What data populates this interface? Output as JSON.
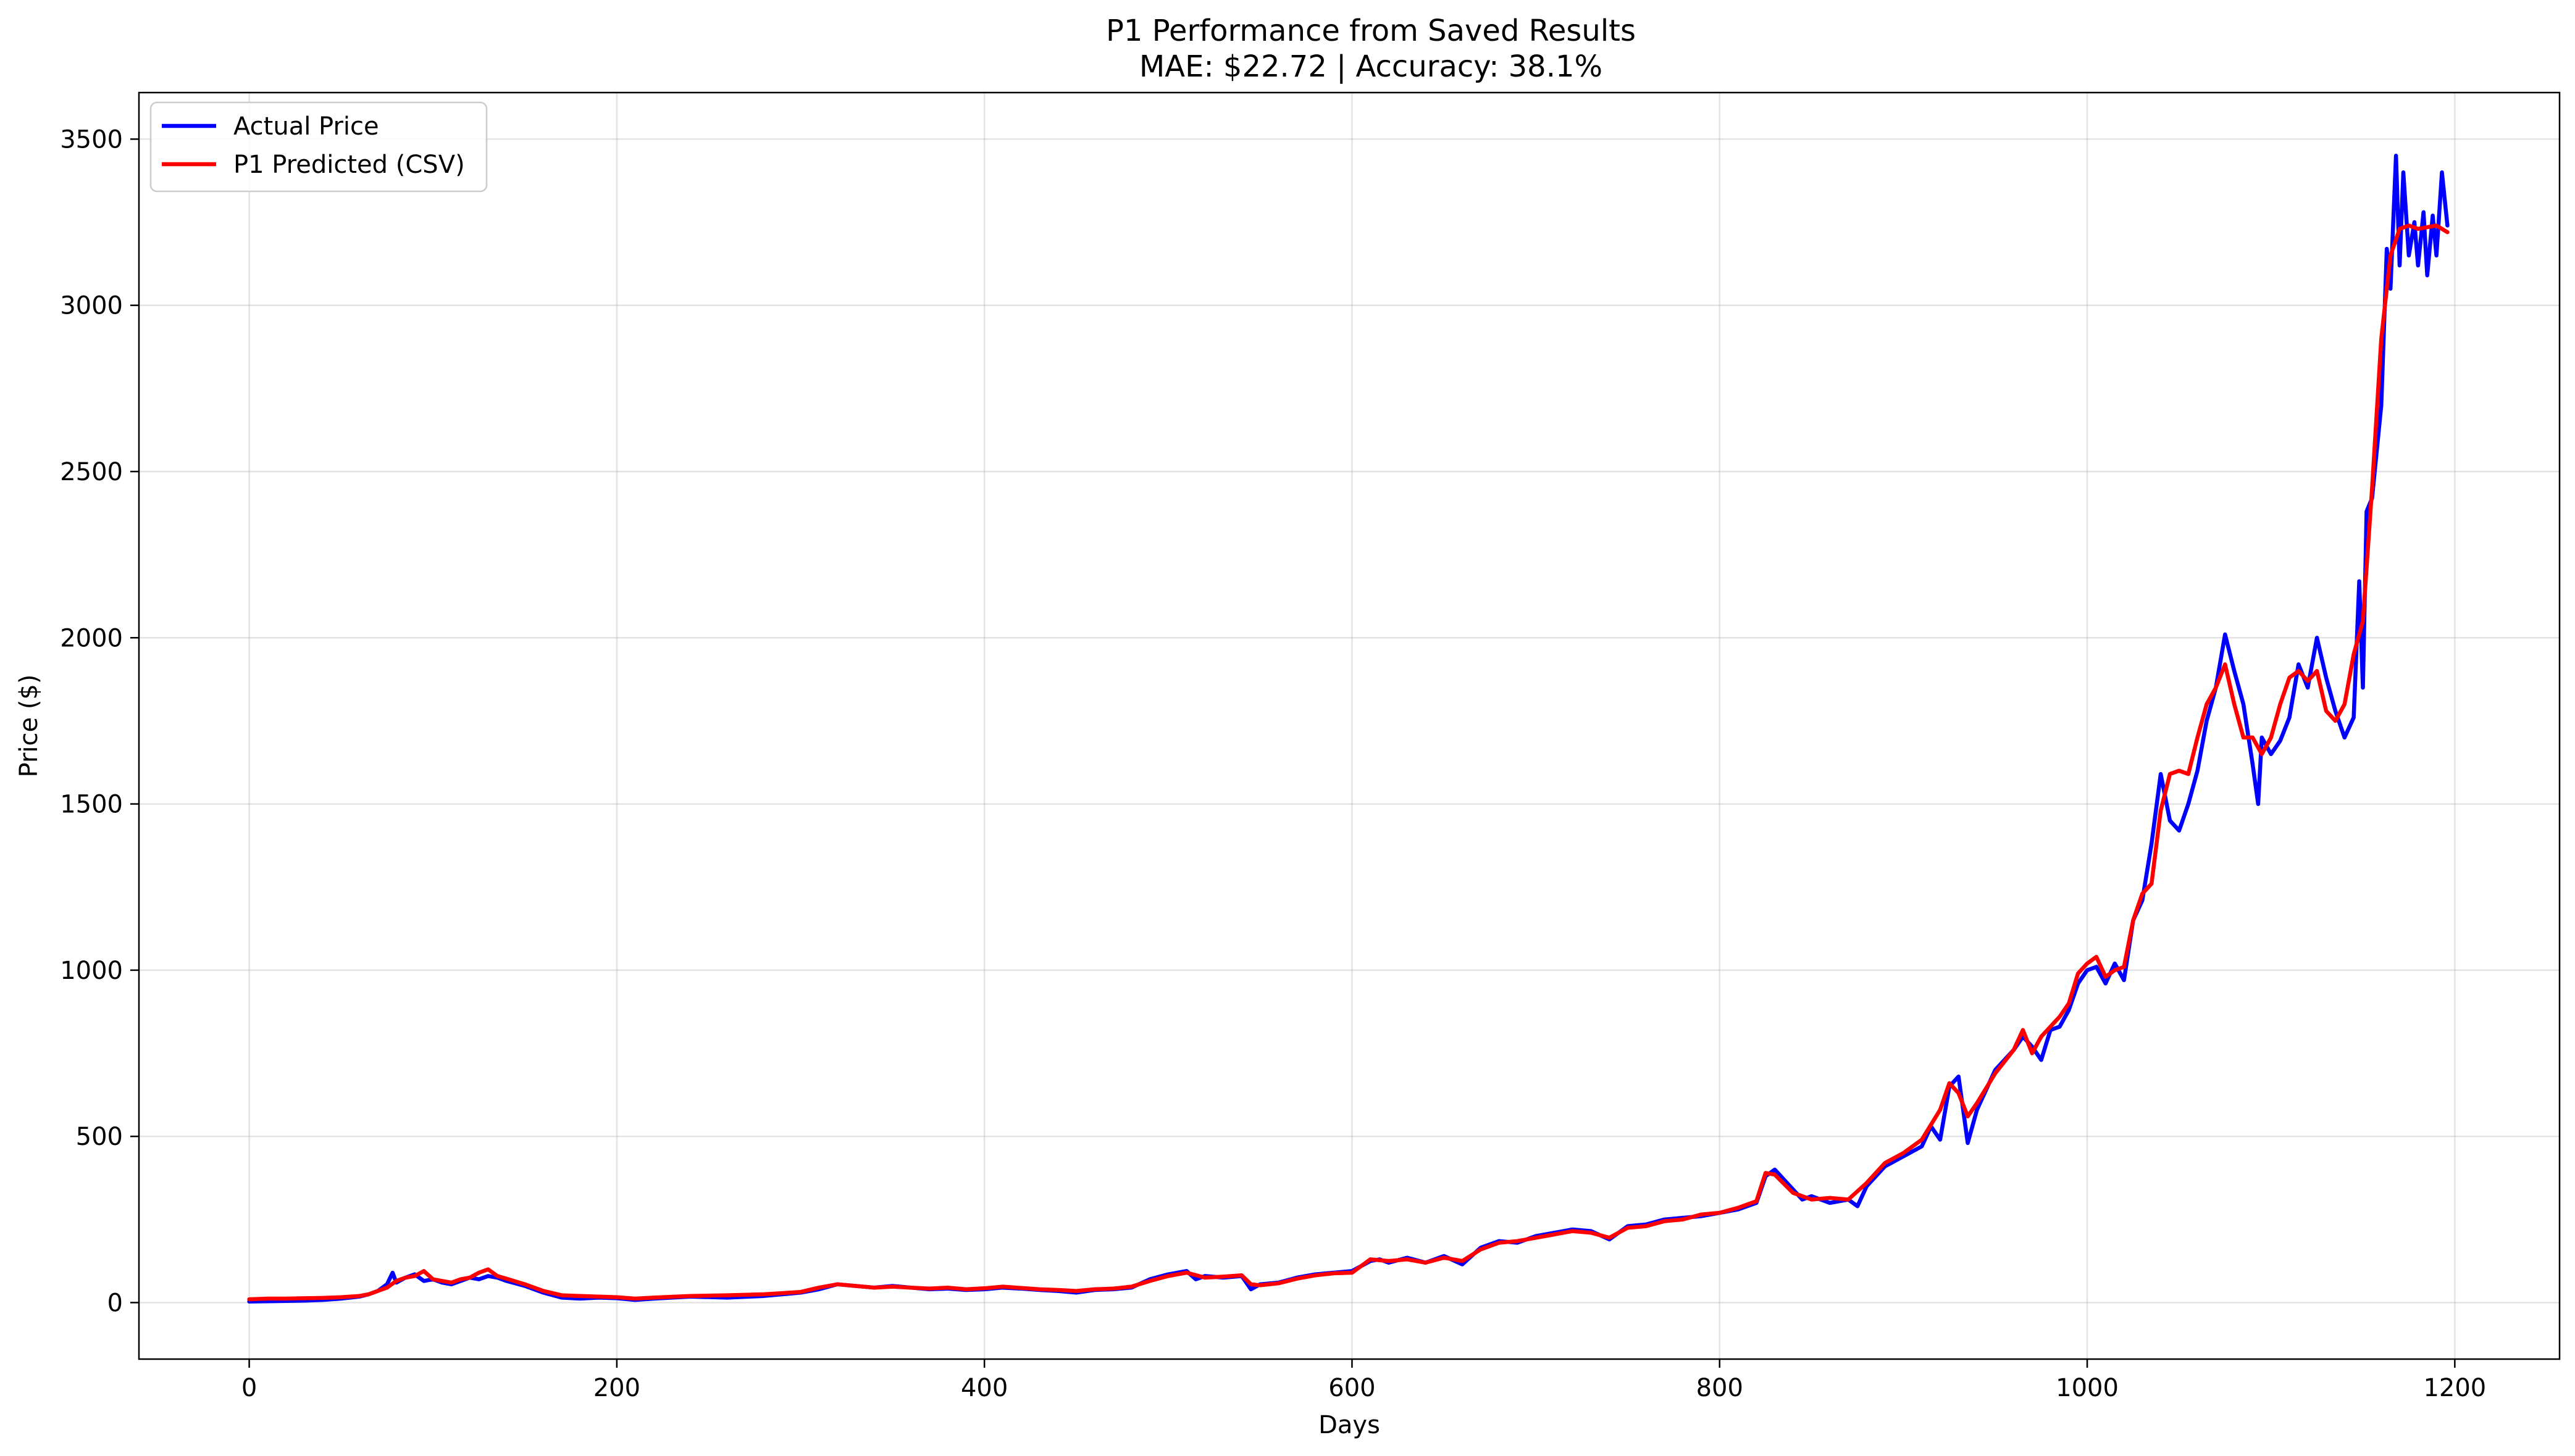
{
  "chart_data": {
    "type": "line",
    "title": "P1 Performance from Saved Results",
    "subtitle": "MAE: $22.72 | Accuracy: 38.1%",
    "xlabel": "Days",
    "ylabel": "Price ($)",
    "xlim": [
      -60,
      1257
    ],
    "ylim": [
      -170,
      3640
    ],
    "xticks": [
      0,
      200,
      400,
      600,
      800,
      1000,
      1200
    ],
    "yticks": [
      0,
      500,
      1000,
      1500,
      2000,
      2500,
      3000,
      3500
    ],
    "grid": true,
    "legend_position": "top-left",
    "series": [
      {
        "name": "Actual Price",
        "color": "#0000ff",
        "x": [
          0,
          10,
          20,
          30,
          40,
          50,
          60,
          65,
          70,
          75,
          78,
          80,
          85,
          90,
          95,
          100,
          105,
          110,
          115,
          120,
          125,
          130,
          135,
          140,
          150,
          160,
          170,
          180,
          190,
          200,
          210,
          220,
          240,
          260,
          280,
          300,
          310,
          320,
          330,
          340,
          350,
          360,
          370,
          380,
          390,
          400,
          410,
          420,
          430,
          440,
          450,
          460,
          470,
          480,
          490,
          500,
          510,
          515,
          520,
          530,
          540,
          545,
          550,
          560,
          570,
          580,
          590,
          600,
          610,
          615,
          620,
          630,
          640,
          650,
          660,
          670,
          680,
          690,
          700,
          710,
          720,
          730,
          740,
          750,
          760,
          770,
          780,
          790,
          800,
          810,
          820,
          825,
          830,
          840,
          845,
          850,
          860,
          870,
          875,
          880,
          890,
          900,
          910,
          915,
          920,
          925,
          930,
          935,
          940,
          950,
          960,
          965,
          970,
          975,
          980,
          985,
          990,
          995,
          1000,
          1005,
          1010,
          1015,
          1020,
          1025,
          1030,
          1035,
          1040,
          1045,
          1050,
          1055,
          1060,
          1065,
          1070,
          1075,
          1080,
          1085,
          1090,
          1093,
          1095,
          1100,
          1105,
          1110,
          1115,
          1120,
          1125,
          1130,
          1135,
          1140,
          1145,
          1148,
          1150,
          1152,
          1155,
          1160,
          1163,
          1165,
          1168,
          1170,
          1172,
          1175,
          1178,
          1180,
          1183,
          1185,
          1188,
          1190,
          1193,
          1196
        ],
        "values": [
          3,
          4,
          5,
          6,
          8,
          12,
          18,
          25,
          35,
          55,
          90,
          60,
          75,
          85,
          65,
          70,
          60,
          55,
          65,
          75,
          70,
          80,
          75,
          65,
          50,
          30,
          15,
          12,
          15,
          13,
          8,
          12,
          18,
          15,
          20,
          30,
          40,
          55,
          50,
          45,
          50,
          45,
          40,
          42,
          38,
          40,
          45,
          42,
          38,
          35,
          30,
          38,
          40,
          45,
          70,
          85,
          95,
          70,
          80,
          75,
          80,
          40,
          55,
          60,
          75,
          85,
          90,
          95,
          125,
          130,
          120,
          135,
          120,
          140,
          115,
          165,
          185,
          180,
          200,
          210,
          220,
          215,
          190,
          230,
          235,
          250,
          255,
          260,
          270,
          280,
          300,
          380,
          400,
          340,
          310,
          320,
          300,
          310,
          290,
          350,
          410,
          440,
          470,
          530,
          490,
          650,
          680,
          480,
          580,
          700,
          760,
          800,
          770,
          730,
          820,
          830,
          880,
          960,
          1000,
          1010,
          960,
          1020,
          970,
          1150,
          1210,
          1380,
          1590,
          1450,
          1420,
          1500,
          1600,
          1750,
          1850,
          2010,
          1900,
          1800,
          1620,
          1500,
          1700,
          1650,
          1690,
          1760,
          1920,
          1850,
          2000,
          1880,
          1780,
          1700,
          1760,
          2170,
          1850,
          2380,
          2420,
          2700,
          3170,
          3050,
          3450,
          3120,
          3400,
          3150,
          3250,
          3120,
          3280,
          3090,
          3270,
          3150,
          3400,
          3240
        ],
        "line_width": 2
      },
      {
        "name": "P1 Predicted (CSV)",
        "color": "#ff0000",
        "x": [
          0,
          10,
          20,
          30,
          40,
          50,
          60,
          65,
          70,
          75,
          80,
          85,
          90,
          95,
          100,
          105,
          110,
          115,
          120,
          125,
          130,
          135,
          140,
          150,
          160,
          170,
          180,
          190,
          200,
          210,
          220,
          240,
          260,
          280,
          300,
          310,
          320,
          330,
          340,
          350,
          360,
          370,
          380,
          390,
          400,
          410,
          420,
          430,
          440,
          450,
          460,
          470,
          480,
          490,
          500,
          510,
          520,
          530,
          540,
          545,
          550,
          560,
          570,
          580,
          590,
          600,
          610,
          620,
          630,
          640,
          650,
          660,
          670,
          680,
          690,
          700,
          710,
          720,
          730,
          740,
          750,
          760,
          770,
          780,
          790,
          800,
          810,
          820,
          825,
          830,
          840,
          845,
          850,
          860,
          870,
          880,
          890,
          900,
          910,
          920,
          925,
          930,
          935,
          940,
          950,
          960,
          965,
          970,
          975,
          980,
          985,
          990,
          995,
          1000,
          1005,
          1010,
          1015,
          1020,
          1025,
          1030,
          1035,
          1040,
          1045,
          1050,
          1055,
          1060,
          1065,
          1070,
          1075,
          1080,
          1085,
          1090,
          1095,
          1100,
          1105,
          1110,
          1115,
          1120,
          1125,
          1130,
          1135,
          1140,
          1145,
          1150,
          1155,
          1160,
          1163,
          1165,
          1170,
          1175,
          1180,
          1185,
          1190,
          1196
        ],
        "values": [
          10,
          12,
          12,
          13,
          14,
          16,
          20,
          25,
          35,
          45,
          65,
          75,
          80,
          95,
          70,
          65,
          60,
          70,
          75,
          90,
          100,
          80,
          72,
          55,
          35,
          22,
          20,
          18,
          16,
          12,
          15,
          20,
          22,
          25,
          32,
          45,
          55,
          50,
          45,
          48,
          45,
          42,
          45,
          40,
          43,
          48,
          44,
          40,
          38,
          35,
          40,
          42,
          48,
          65,
          80,
          90,
          75,
          78,
          82,
          55,
          52,
          58,
          72,
          82,
          88,
          90,
          130,
          125,
          130,
          120,
          135,
          125,
          160,
          180,
          185,
          195,
          205,
          215,
          210,
          195,
          225,
          230,
          245,
          250,
          265,
          270,
          285,
          305,
          390,
          385,
          330,
          320,
          310,
          315,
          310,
          360,
          420,
          450,
          490,
          580,
          660,
          630,
          560,
          600,
          690,
          760,
          820,
          750,
          800,
          830,
          860,
          900,
          990,
          1020,
          1040,
          980,
          1000,
          1010,
          1150,
          1230,
          1260,
          1480,
          1590,
          1600,
          1590,
          1700,
          1800,
          1850,
          1920,
          1800,
          1700,
          1700,
          1650,
          1700,
          1800,
          1880,
          1900,
          1870,
          1900,
          1780,
          1750,
          1800,
          1950,
          2050,
          2450,
          2900,
          3050,
          3150,
          3230,
          3240,
          3230,
          3235,
          3240,
          3220
        ],
        "line_width": 2
      }
    ]
  }
}
